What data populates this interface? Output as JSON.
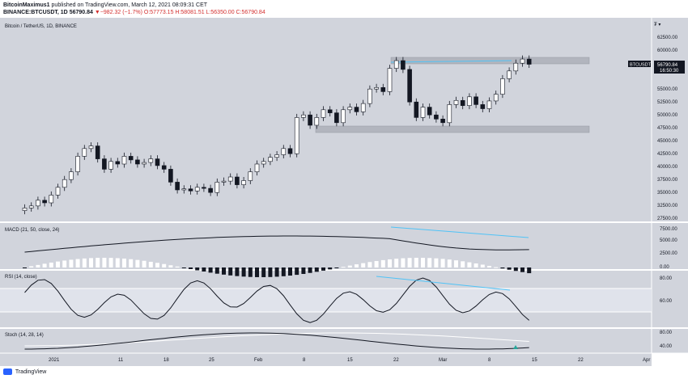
{
  "header": {
    "author": "BitcoinMaximus1",
    "published_text": "published on TradingView.com, March 12, 2021 08:09:31 CET",
    "symbol_line": "BINANCE:BTCUSDT, 1D",
    "price": "56790.84",
    "change": "▼−982.32 (−1.7%)",
    "ohlc": "O:57773.15 H:58081.51 L:56350.00 C:56790.84"
  },
  "chart": {
    "title": "Bitcoin / TetherUS, 1D, BINANCE",
    "price_tag": "56790.84",
    "countdown": "16:50:30",
    "ticker": "BTCUSDT",
    "price_axis": [
      "62500.00",
      "60000.00",
      "57500.00",
      "55000.00",
      "52500.00",
      "50000.00",
      "47500.00",
      "45000.00",
      "42500.00",
      "40000.00",
      "37500.00",
      "35000.00",
      "32500.00",
      "30000.00",
      "27500.00"
    ],
    "macd": {
      "label": "MACD (21, 50, close, 24)",
      "axis": [
        "7500.00",
        "5000.00",
        "2500.00",
        "0.00"
      ]
    },
    "rsi": {
      "label": "RSI (14, close)",
      "axis": [
        "80.00",
        "60.00"
      ]
    },
    "stoch": {
      "label": "Stoch (14, 28, 14)",
      "axis": [
        "80.00",
        "40.00"
      ]
    },
    "time_axis": [
      "2021",
      "11",
      "18",
      "25",
      "Feb",
      "8",
      "15",
      "22",
      "Mar",
      "8",
      "15",
      "22",
      "Apr"
    ]
  },
  "colors": {
    "bg": "#d1d4dc",
    "accent": "#2196f3",
    "trendline": "#4fc3f7",
    "zone": "#b2b5be",
    "up": "#ffffff",
    "down": "#131722"
  },
  "footer": {
    "brand": "TradingView"
  }
}
